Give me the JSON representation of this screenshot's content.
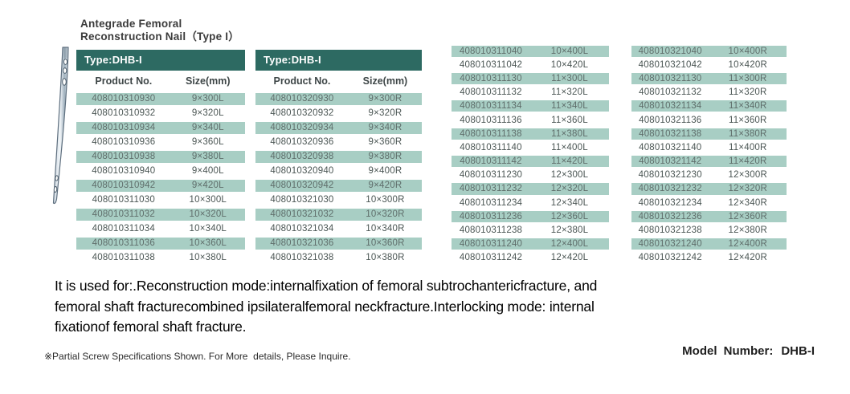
{
  "title": {
    "line1": "Antegrade Femoral",
    "line2": "Reconstruction Nail（Type I）"
  },
  "colors": {
    "header_teal": "#2d6a62",
    "row_shade_green": "#a8cec4"
  },
  "icons": {
    "nail_illustration": "femoral-nail-illustration"
  },
  "tables": [
    {
      "header": "Type:DHB-I",
      "columns": [
        "Product No.",
        "Size(mm)"
      ],
      "rows": [
        [
          "408010310930",
          "9×300L"
        ],
        [
          "408010310932",
          "9×320L"
        ],
        [
          "408010310934",
          "9×340L"
        ],
        [
          "408010310936",
          "9×360L"
        ],
        [
          "408010310938",
          "9×380L"
        ],
        [
          "408010310940",
          "9×400L"
        ],
        [
          "408010310942",
          "9×420L"
        ],
        [
          "408010311030",
          "10×300L"
        ],
        [
          "408010311032",
          "10×320L"
        ],
        [
          "408010311034",
          "10×340L"
        ],
        [
          "408010311036",
          "10×360L"
        ],
        [
          "408010311038",
          "10×380L"
        ]
      ]
    },
    {
      "header": "Type:DHB-I",
      "columns": [
        "Product No.",
        "Size(mm)"
      ],
      "rows": [
        [
          "408010320930",
          "9×300R"
        ],
        [
          "408010320932",
          "9×320R"
        ],
        [
          "408010320934",
          "9×340R"
        ],
        [
          "408010320936",
          "9×360R"
        ],
        [
          "408010320938",
          "9×380R"
        ],
        [
          "408010320940",
          "9×400R"
        ],
        [
          "408010320942",
          "9×420R"
        ],
        [
          "408010321030",
          "10×300R"
        ],
        [
          "408010321032",
          "10×320R"
        ],
        [
          "408010321034",
          "10×340R"
        ],
        [
          "408010321036",
          "10×360R"
        ],
        [
          "408010321038",
          "10×380R"
        ]
      ]
    },
    {
      "rows": [
        [
          "408010311040",
          "10×400L"
        ],
        [
          "408010311042",
          "10×420L"
        ],
        [
          "408010311130",
          "11×300L"
        ],
        [
          "408010311132",
          "11×320L"
        ],
        [
          "408010311134",
          "11×340L"
        ],
        [
          "408010311136",
          "11×360L"
        ],
        [
          "408010311138",
          "11×380L"
        ],
        [
          "408010311140",
          "11×400L"
        ],
        [
          "408010311142",
          "11×420L"
        ],
        [
          "408010311230",
          "12×300L"
        ],
        [
          "408010311232",
          "12×320L"
        ],
        [
          "408010311234",
          "12×340L"
        ],
        [
          "408010311236",
          "12×360L"
        ],
        [
          "408010311238",
          "12×380L"
        ],
        [
          "408010311240",
          "12×400L"
        ],
        [
          "408010311242",
          "12×420L"
        ]
      ]
    },
    {
      "rows": [
        [
          "408010321040",
          "10×400R"
        ],
        [
          "408010321042",
          "10×420R"
        ],
        [
          "408010321130",
          "11×300R"
        ],
        [
          "408010321132",
          "11×320R"
        ],
        [
          "408010321134",
          "11×340R"
        ],
        [
          "408010321136",
          "11×360R"
        ],
        [
          "408010321138",
          "11×380R"
        ],
        [
          "408010321140",
          "11×400R"
        ],
        [
          "408010321142",
          "11×420R"
        ],
        [
          "408010321230",
          "12×300R"
        ],
        [
          "408010321232",
          "12×320R"
        ],
        [
          "408010321234",
          "12×340R"
        ],
        [
          "408010321236",
          "12×360R"
        ],
        [
          "408010321238",
          "12×380R"
        ],
        [
          "408010321240",
          "12×400R"
        ],
        [
          "408010321242",
          "12×420R"
        ]
      ]
    }
  ],
  "usage": {
    "lines": [
      "It is used for:.Reconstruction mode:internalfixation of femoral subtrochantericfracture, and",
      "femoral shaft fracturecombined ipsilateralfemoral neckfracture.Interlocking mode: internal",
      "fixationof femoral shaft fracture."
    ]
  },
  "note": "※Partial Screw Specifications Shown. For More  details, Please Inquire.",
  "model": {
    "label": "Model Number:",
    "value": "DHB-I"
  }
}
